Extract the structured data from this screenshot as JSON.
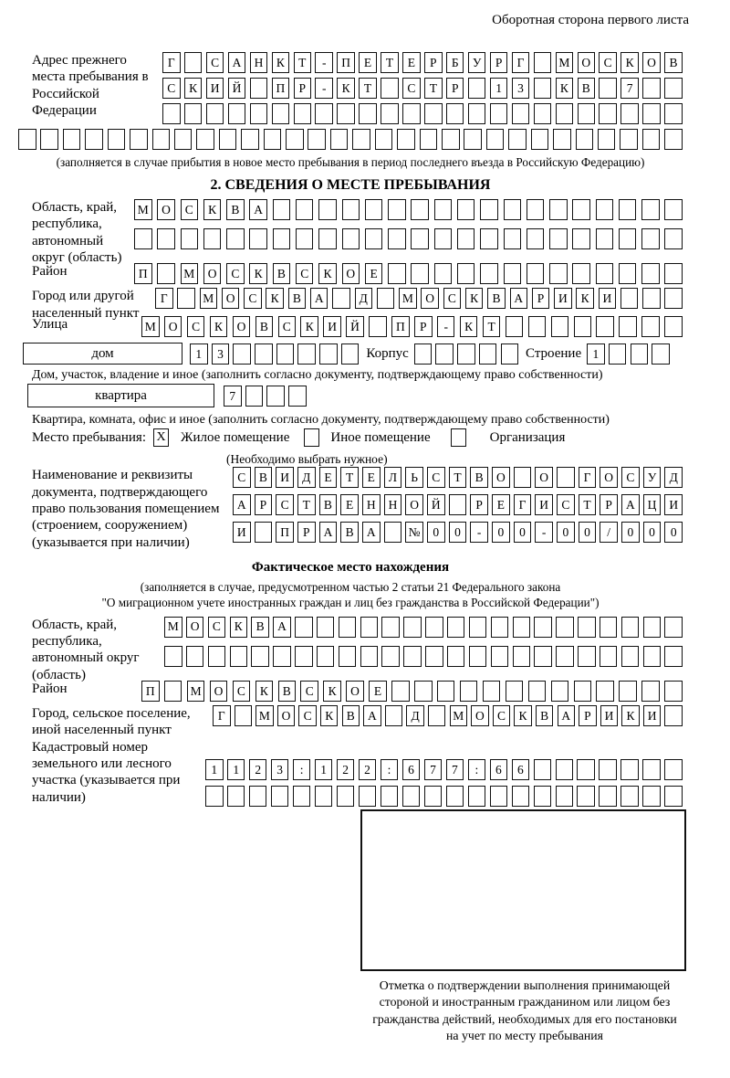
{
  "page": {
    "back_note": "Оборотная сторона первого листа"
  },
  "prev_address": {
    "label": "Адрес прежнего места пребывания в Российской Федерации",
    "row1": {
      "text": "Г САНКТ-ПЕТЕРБУРГ МОСКОВ",
      "len": 24
    },
    "row2": {
      "text": "СКИЙ ПР-КТ СТР 13 КВ 7",
      "len": 24
    },
    "row3": {
      "text": "",
      "len": 24
    },
    "row4": {
      "text": "",
      "len": 30
    },
    "note": "(заполняется в случае прибытия в новое место пребывания в период последнего въезда в Российскую Федерацию)"
  },
  "section2": {
    "title": "2. СВЕДЕНИЯ О МЕСТЕ ПРЕБЫВАНИЯ",
    "region": {
      "label": "Область, край, республика, автономный округ (область)",
      "row1": {
        "text": "МОСКВА",
        "len": 24
      },
      "row2": {
        "text": "",
        "len": 24
      }
    },
    "district": {
      "label": "Район",
      "row": {
        "text": "П МОСКВСКОЕ",
        "len": 24
      }
    },
    "city": {
      "label": "Город или другой населенный пункт",
      "row": {
        "text": "Г МОСКВА Д МОСКВАРИКИ",
        "len": 24
      }
    },
    "street": {
      "label": "Улица",
      "row": {
        "text": "МОСКОВСКИЙ ПР-КТ",
        "len": 24
      }
    },
    "house": {
      "box_label": "дом",
      "cells": {
        "text": "13",
        "len": 8
      },
      "korpus_label": "Корпус",
      "korpus_cells": {
        "text": "",
        "len": 5
      },
      "stroenie_label": "Строение",
      "stroenie_cells": {
        "text": "1",
        "len": 4
      },
      "note": "Дом, участок, владение и иное (заполнить согласно документу, подтверждающему право собственности)"
    },
    "apartment": {
      "box_label": "квартира",
      "cells": {
        "text": "7",
        "len": 4
      },
      "note": "Квартира, комната, офис и иное (заполнить согласно документу, подтверждающему право собственности)"
    },
    "stay_type": {
      "label": "Место пребывания:",
      "options": [
        {
          "label": "Жилое помещение",
          "mark": "X"
        },
        {
          "label": "Иное помещение",
          "mark": ""
        },
        {
          "label": "Организация",
          "mark": ""
        }
      ],
      "note": "(Необходимо выбрать нужное)"
    },
    "document": {
      "label": "Наименование и реквизиты документа, подтверждающего право пользования помещением (строением, сооружением) (указывается при наличии)",
      "row1": {
        "text": "СВИДЕТЕЛЬСТВО О ГОСУД",
        "len": 21
      },
      "row2": {
        "text": "АРСТВЕННОЙ РЕГИСТРАЦИ",
        "len": 21
      },
      "row3": {
        "text": "И ПРАВА №00-00-00/000",
        "len": 21
      }
    }
  },
  "actual_location": {
    "title": "Фактическое место нахождения",
    "note_line1": "(заполняется в случае, предусмотренном частью 2 статьи 21 Федерального закона",
    "note_line2": "\"О миграционном учете иностранных граждан и лиц без гражданства в Российской Федерации\")",
    "region": {
      "label": "Область, край, республика, автономный округ (область)",
      "row1": {
        "text": "МОСКВА",
        "len": 24
      },
      "row2": {
        "text": "",
        "len": 24
      }
    },
    "district": {
      "label": "Район",
      "row": {
        "text": "П МОСКВСКОЕ",
        "len": 24
      }
    },
    "city": {
      "label": "Город, сельское поселение, иной населенный пункт",
      "row": {
        "text": "Г МОСКВА Д МОСКВАРИКИ",
        "len": 22
      }
    },
    "cadastral": {
      "label": "Кадастровый номер земельного или лесного участка (указывается при наличии)",
      "row1": {
        "text": "1123:122:677:66",
        "len": 22
      },
      "row2": {
        "text": "",
        "len": 22
      }
    },
    "stamp": {
      "caption_lines": [
        "Отметка о подтверждении выполнения принимающей",
        "стороной и иностранным гражданином или лицом без",
        "гражданства действий, необходимых для его постановки",
        "на учет по месту пребывания"
      ]
    }
  }
}
